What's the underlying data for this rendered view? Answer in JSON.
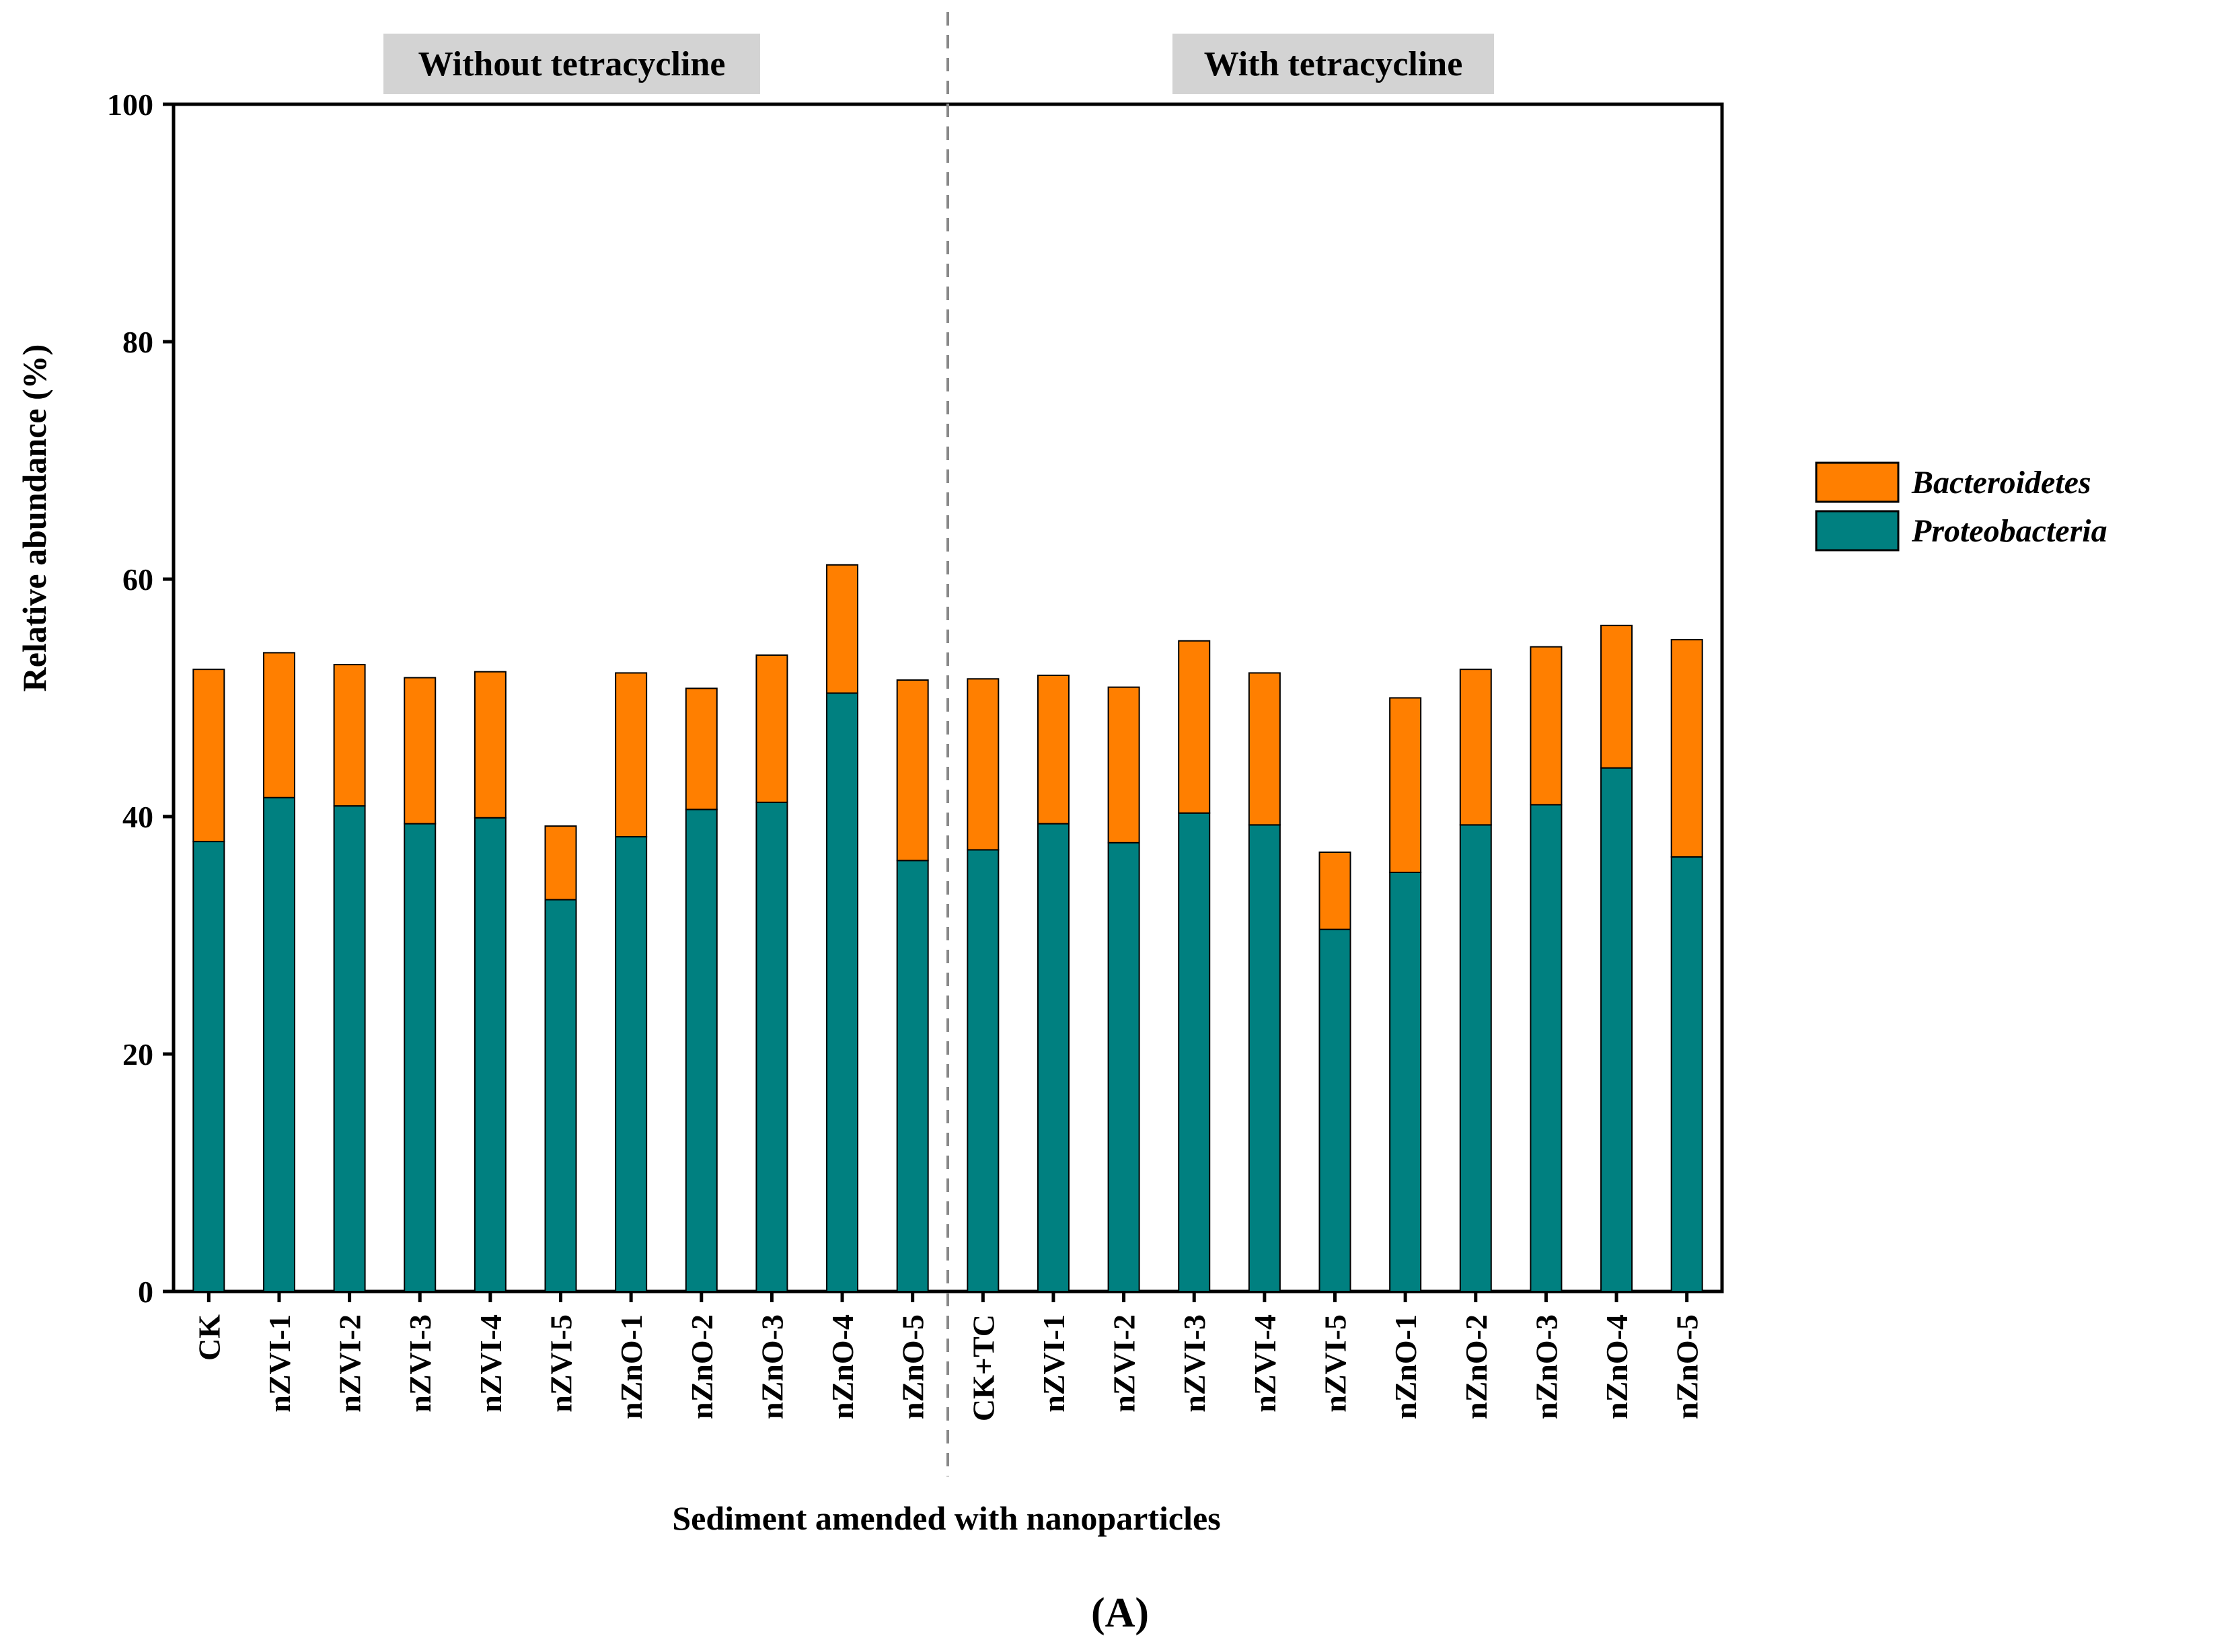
{
  "chart_data": {
    "type": "bar",
    "stacked": true,
    "ylabel": "Relative abundance (%)",
    "xlabel": "Sediment amended with nanoparticles",
    "ylim": [
      0,
      100
    ],
    "yticks": [
      0,
      20,
      40,
      60,
      80,
      100
    ],
    "group_labels": [
      "Without tetracycline",
      "With tetracycline"
    ],
    "panel_label": "(A)",
    "categories": [
      "CK",
      "nZVI-1",
      "nZVI-2",
      "nZVI-3",
      "nZVI-4",
      "nZVI-5",
      "nZnO-1",
      "nZnO-2",
      "nZnO-3",
      "nZnO-4",
      "nZnO-5",
      "CK+TC",
      "nZVI-1",
      "nZVI-2",
      "nZVI-3",
      "nZVI-4",
      "nZVI-5",
      "nZnO-1",
      "nZnO-2",
      "nZnO-3",
      "nZnO-4",
      "nZnO-5"
    ],
    "series": [
      {
        "name": "Proteobacteria",
        "color": "#008080",
        "values": [
          37.9,
          41.6,
          40.9,
          39.4,
          39.9,
          33.0,
          38.3,
          40.6,
          41.2,
          50.4,
          36.3,
          37.2,
          39.4,
          37.8,
          40.3,
          39.3,
          30.5,
          35.3,
          39.3,
          41.0,
          44.1,
          36.6
        ]
      },
      {
        "name": "Bacteroidetes",
        "color": "#FF7F00",
        "values": [
          14.5,
          12.2,
          11.9,
          12.3,
          12.3,
          6.2,
          13.8,
          10.2,
          12.4,
          10.8,
          15.2,
          14.4,
          12.5,
          13.1,
          14.5,
          12.8,
          6.5,
          14.7,
          13.1,
          13.3,
          12.0,
          18.3
        ]
      }
    ]
  }
}
